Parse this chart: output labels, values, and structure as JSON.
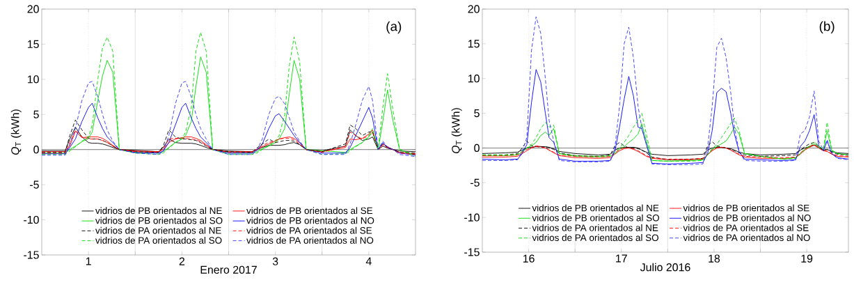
{
  "chart_data": [
    {
      "type": "line",
      "xlabel": "Enero 2017",
      "ylabel": "*Q*$_{T}$ (kWh)",
      "annotations": [
        "(a)"
      ],
      "x": [
        0.5,
        0.75,
        0.8,
        0.86,
        0.93,
        1,
        1.04,
        1.1,
        1.15,
        1.2,
        1.26,
        1.33,
        1.5,
        1.75,
        1.8,
        1.86,
        1.93,
        2,
        2.04,
        2.1,
        2.15,
        2.2,
        2.26,
        2.33,
        2.5,
        2.75,
        2.8,
        2.86,
        2.93,
        3,
        3.04,
        3.1,
        3.15,
        3.2,
        3.26,
        3.33,
        3.5,
        3.75,
        3.8,
        3.86,
        3.93,
        4,
        4.04,
        4.1,
        4.15,
        4.2,
        4.26,
        4.33,
        4.5
      ],
      "xlim": [
        0.5,
        4.5
      ],
      "xticks": [
        1,
        2,
        3,
        4,
        {
          "value": 1.5,
          "label": null
        },
        {
          "value": 2.5,
          "label": null
        },
        {
          "value": 3.5,
          "label": null
        }
      ],
      "ylim": [
        -15,
        20
      ],
      "yticks": [
        -15,
        -10,
        -5,
        0,
        5,
        10,
        15,
        20
      ],
      "grid": "x",
      "legend": "bottom",
      "ref_lines": [
        {
          "axis": "y",
          "value": 0,
          "color": "#555555"
        }
      ],
      "series": [
        {
          "name": "vidrios de PB orientados al NE",
          "color": "#000000",
          "line_style": "solid",
          "values": [
            -0.2,
            -0.2,
            1.5,
            3.2,
            1.8,
            1.0,
            0.9,
            0.9,
            0.8,
            0.6,
            0.3,
            0,
            -0.1,
            -0.3,
            0.3,
            1.5,
            1.0,
            0.9,
            0.9,
            0.9,
            0.8,
            0.6,
            0.3,
            0,
            -0.2,
            -0.3,
            0,
            0.3,
            0.6,
            0.6,
            0.6,
            0.7,
            0.9,
            1.0,
            0.7,
            0,
            -0.2,
            0.5,
            2.8,
            2.0,
            1.3,
            1.5,
            1.8,
            0,
            0.5,
            0.2,
            0,
            -0.2,
            -0.3
          ]
        },
        {
          "name": "vidrios de PB orientados al SE",
          "color": "#ff0000",
          "line_style": "solid",
          "values": [
            -0.3,
            -0.3,
            0.5,
            2.6,
            1.7,
            1.8,
            1.8,
            1.8,
            1.6,
            1.2,
            0.6,
            0,
            -0.2,
            -0.3,
            0,
            1.0,
            1.5,
            1.7,
            1.8,
            1.8,
            1.6,
            1.3,
            0.7,
            0,
            -0.3,
            -0.3,
            0,
            0.4,
            0.8,
            1.2,
            1.5,
            1.7,
            1.8,
            1.6,
            1.0,
            0,
            -0.3,
            0.3,
            1.5,
            1.4,
            1.6,
            2.2,
            2.8,
            0,
            0.8,
            0.4,
            0,
            -0.4,
            -0.6
          ]
        },
        {
          "name": "vidrios de PB orientados al SO",
          "color": "#00dd00",
          "line_style": "solid",
          "values": [
            -0.5,
            -0.5,
            0,
            0.5,
            1.1,
            1.6,
            2.5,
            7.0,
            10.5,
            12.7,
            11.0,
            0,
            -0.4,
            -0.5,
            -0.3,
            0.3,
            1.0,
            1.5,
            2.0,
            4.0,
            9.0,
            13.2,
            11.0,
            0,
            -0.5,
            -0.5,
            -0.3,
            0.1,
            0.5,
            1.0,
            1.5,
            3.0,
            8.0,
            12.7,
            10.0,
            0,
            null,
            -0.4,
            0,
            0.5,
            1.0,
            1.8,
            2.5,
            0,
            4.0,
            8.5,
            4.0,
            0,
            -0.8
          ]
        },
        {
          "name": "vidrios de PB orientados al NO",
          "color": "#0000ff",
          "line_style": "solid",
          "values": [
            -0.6,
            -0.6,
            0.3,
            1.5,
            4.0,
            6.0,
            6.6,
            4.5,
            3.0,
            1.8,
            1.0,
            0,
            -0.4,
            -0.5,
            -0.2,
            1.0,
            3.5,
            6.0,
            6.6,
            4.5,
            3.0,
            1.8,
            1.0,
            0,
            -0.5,
            -0.5,
            -0.1,
            0.8,
            3.0,
            4.8,
            5.1,
            4.0,
            3.0,
            2.0,
            1.0,
            0,
            -0.5,
            -0.5,
            0.3,
            2.0,
            4.0,
            6.0,
            4.5,
            0,
            1.0,
            0.3,
            0,
            -0.5,
            -0.8
          ]
        },
        {
          "name": "vidrios de PA orientados al NE",
          "color": "#000000",
          "line_style": "dashed",
          "values": [
            -0.4,
            -0.4,
            2.0,
            4.2,
            2.8,
            1.6,
            1.5,
            1.5,
            1.3,
            1.0,
            0.5,
            0,
            -0.3,
            -0.4,
            0.5,
            2.8,
            1.8,
            1.5,
            1.5,
            1.4,
            1.3,
            1.0,
            0.5,
            0,
            -0.3,
            -0.4,
            0.2,
            0.8,
            1.5,
            1.0,
            1.1,
            1.3,
            1.3,
            1.2,
            0.7,
            0,
            -0.3,
            0.8,
            3.5,
            3.0,
            2.0,
            2.5,
            2.5,
            0,
            0.8,
            0.3,
            0,
            -0.4,
            -0.5
          ]
        },
        {
          "name": "vidrios de PA orientados al SE",
          "color": "#ff0000",
          "line_style": "dashed",
          "values": [
            -0.5,
            -0.5,
            1.0,
            2.8,
            1.8,
            1.5,
            1.5,
            1.5,
            1.3,
            1.0,
            0.5,
            0,
            -0.3,
            -0.4,
            0.1,
            1.5,
            1.6,
            1.6,
            1.6,
            1.5,
            1.4,
            1.1,
            0.6,
            0,
            -0.4,
            -0.4,
            0,
            0.6,
            1.0,
            1.3,
            1.5,
            1.6,
            1.6,
            1.4,
            0.8,
            0,
            -0.4,
            0.5,
            2.5,
            2.0,
            1.5,
            2.0,
            2.5,
            0,
            0.6,
            0.3,
            0,
            -0.5,
            -0.7
          ]
        },
        {
          "name": "vidrios de PA orientados al SO",
          "color": "#00dd00",
          "line_style": "dashed",
          "values": [
            -0.7,
            -0.7,
            -0.2,
            0.4,
            1.2,
            1.8,
            3.5,
            10.0,
            14.5,
            16.0,
            14.0,
            0,
            -0.5,
            -0.7,
            -0.5,
            0.2,
            1.0,
            1.6,
            2.5,
            6.0,
            14.0,
            16.7,
            14.0,
            0,
            -0.7,
            -0.7,
            -0.5,
            0,
            0.6,
            1.2,
            2.0,
            5.0,
            12.0,
            16.0,
            12.5,
            0,
            -0.7,
            -0.6,
            -0.2,
            0.4,
            1.0,
            2.0,
            3.0,
            0,
            6.0,
            10.8,
            5.5,
            0,
            -1.0
          ]
        },
        {
          "name": "vidrios de PA orientados al NO",
          "color": "#3333ff",
          "line_style": "dashed",
          "values": [
            -0.8,
            -0.8,
            0.8,
            3.0,
            7.0,
            9.5,
            9.7,
            7.5,
            5.0,
            2.8,
            1.2,
            0,
            -0.5,
            -0.7,
            -0.3,
            2.0,
            6.5,
            9.5,
            9.7,
            7.5,
            5.0,
            3.0,
            1.5,
            0,
            -0.7,
            -0.7,
            -0.2,
            1.5,
            5.0,
            7.3,
            7.6,
            6.5,
            4.5,
            2.5,
            1.2,
            0,
            -0.7,
            -0.7,
            0.8,
            3.5,
            7.0,
            9.0,
            7.0,
            0,
            1.2,
            0.4,
            0,
            -0.7,
            -1.0
          ]
        }
      ]
    },
    {
      "type": "line",
      "xlabel": "Julio 2016",
      "ylabel": "*Q*$_{T}$ (kWh)",
      "annotations": [
        "(b)"
      ],
      "x": [
        15.5,
        15.75,
        15.88,
        15.93,
        15.98,
        16.03,
        16.08,
        16.13,
        16.18,
        16.22,
        16.27,
        16.33,
        16.5,
        16.75,
        16.88,
        16.93,
        16.98,
        17.03,
        17.08,
        17.13,
        17.18,
        17.22,
        17.27,
        17.33,
        17.5,
        17.75,
        17.88,
        17.93,
        17.98,
        18.03,
        18.08,
        18.13,
        18.18,
        18.22,
        18.27,
        18.33,
        18.5,
        18.75,
        18.88,
        18.93,
        18.98,
        19.03,
        19.08,
        19.13,
        19.18,
        19.22,
        19.27,
        19.33,
        19.45
      ],
      "xlim": [
        15.5,
        19.45
      ],
      "xticks": [
        16,
        17,
        18,
        19,
        {
          "value": 16.5,
          "label": null
        },
        {
          "value": 17.5,
          "label": null
        },
        {
          "value": 18.5,
          "label": null
        }
      ],
      "ylim": [
        -15,
        20
      ],
      "yticks": [
        -15,
        -10,
        -5,
        0,
        5,
        10,
        15,
        20
      ],
      "grid": "x",
      "legend": "bottom",
      "ref_lines": [
        {
          "axis": "y",
          "value": 0,
          "color": "#555555"
        }
      ],
      "series": [
        {
          "name": "vidrios de PB orientados al NE",
          "color": "#000000",
          "line_style": "solid",
          "values": [
            -0.8,
            -0.7,
            -0.6,
            -0.3,
            0,
            0.1,
            0.2,
            0.2,
            0.2,
            0.1,
            -0.1,
            -0.5,
            -0.8,
            -1.0,
            -0.9,
            -0.3,
            0,
            0.1,
            0.1,
            0.1,
            0,
            -0.3,
            -0.6,
            -0.9,
            -1.1,
            -1.0,
            -0.9,
            -0.3,
            0,
            0.1,
            0.1,
            0,
            -0.1,
            -0.3,
            -0.6,
            -0.8,
            -1.0,
            -0.9,
            -0.8,
            -0.3,
            0,
            0.2,
            0.4,
            0.1,
            -0.3,
            -0.2,
            -0.5,
            -0.7,
            -0.8
          ]
        },
        {
          "name": "vidrios de PB orientados al SE",
          "color": "#ff0000",
          "line_style": "solid",
          "values": [
            -1.3,
            -1.3,
            -1.2,
            -0.8,
            -0.4,
            0,
            0.3,
            0.2,
            0,
            -0.3,
            -0.7,
            -1.1,
            -1.4,
            -1.5,
            -1.4,
            -0.9,
            -0.4,
            -0.1,
            0,
            -0.2,
            -0.5,
            -0.8,
            -1.2,
            -1.5,
            -1.7,
            -1.7,
            -1.6,
            -1.0,
            -0.4,
            0,
            0.1,
            0,
            -0.3,
            -0.6,
            -1.0,
            -1.3,
            -1.5,
            -1.5,
            -1.4,
            -0.9,
            -0.3,
            0.1,
            0.4,
            0,
            -0.4,
            -0.5,
            -0.9,
            -1.2,
            -1.3
          ]
        },
        {
          "name": "vidrios de PB orientados al SO",
          "color": "#00dd00",
          "line_style": "solid",
          "values": [
            -1.1,
            -1.1,
            -1.0,
            -0.6,
            0,
            0.3,
            0.8,
            1.8,
            2.3,
            1.8,
            2.8,
            -0.8,
            -1.2,
            -1.3,
            -1.2,
            -0.8,
            -0.2,
            0.2,
            0.8,
            1.3,
            2.0,
            3.5,
            1.0,
            -1.8,
            -1.9,
            -1.8,
            -1.7,
            -1.0,
            -0.2,
            0.2,
            0.6,
            1.0,
            2.0,
            3.0,
            2.0,
            -0.8,
            -1.2,
            -1.6,
            -1.4,
            -0.8,
            -0.2,
            0.2,
            0.6,
            0.1,
            -0.3,
            2.5,
            -0.4,
            -0.8,
            -1.0
          ]
        },
        {
          "name": "vidrios de PB orientados al NO",
          "color": "#0000ff",
          "line_style": "solid",
          "values": [
            -1.6,
            -1.7,
            -1.6,
            -0.8,
            0.5,
            6.5,
            11.3,
            9.5,
            5.0,
            1.5,
            0.8,
            -1.6,
            -1.9,
            -1.9,
            -1.8,
            -0.5,
            3.0,
            7.0,
            10.3,
            7.5,
            3.0,
            2.8,
            0.5,
            -2.2,
            -2.3,
            -2.2,
            -2.1,
            -0.8,
            2.5,
            8.0,
            8.6,
            8.1,
            5.0,
            2.0,
            -0.5,
            -1.6,
            -1.7,
            -1.8,
            -1.7,
            0.2,
            1.0,
            2.5,
            4.8,
            0.3,
            -0.4,
            1.0,
            -0.8,
            -1.4,
            -1.6
          ]
        },
        {
          "name": "vidrios de PA orientados al NE",
          "color": "#000000",
          "line_style": "dashed",
          "values": [
            -1.0,
            -1.0,
            -0.8,
            0,
            1.0,
            0.3,
            0.2,
            0.2,
            0.1,
            0,
            -0.2,
            -0.7,
            -1.1,
            -1.2,
            -1.0,
            0.3,
            0.8,
            0.3,
            0,
            0,
            -0.1,
            -0.3,
            -0.7,
            -1.3,
            -1.7,
            -1.6,
            -1.5,
            0.3,
            0.9,
            0.3,
            0.1,
            0,
            -0.2,
            -0.4,
            -0.7,
            -1.0,
            -1.2,
            -1.1,
            -1.0,
            -0.3,
            0.2,
            0.6,
            0.8,
            0.2,
            -0.3,
            -0.2,
            -0.6,
            -0.9,
            -1.0
          ]
        },
        {
          "name": "vidrios de PA orientados al SE",
          "color": "#ff0000",
          "line_style": "dashed",
          "values": [
            -1.1,
            -1.1,
            -1.0,
            -0.6,
            -0.2,
            0,
            0.2,
            0.1,
            0,
            -0.3,
            -0.6,
            -1.0,
            -1.2,
            -1.3,
            -1.2,
            -0.7,
            -0.2,
            0,
            0,
            -0.1,
            -0.4,
            -0.7,
            -1.1,
            -1.4,
            -1.6,
            -1.6,
            -1.5,
            -0.9,
            -0.3,
            0,
            0.1,
            0,
            -0.3,
            -0.6,
            -0.9,
            -1.2,
            -1.3,
            -1.4,
            -1.3,
            -0.7,
            -0.2,
            0.2,
            0.5,
            0,
            -0.4,
            -0.4,
            -0.8,
            -1.1,
            -1.2
          ]
        },
        {
          "name": "vidrios de PA orientados al SO",
          "color": "#00dd00",
          "line_style": "dashed",
          "values": [
            -1.0,
            -1.0,
            -0.9,
            -0.5,
            0,
            0.5,
            1.5,
            2.8,
            3.7,
            3.0,
            3.3,
            -0.8,
            -1.1,
            -1.2,
            -1.1,
            -0.6,
            0,
            0.8,
            1.8,
            3.0,
            4.0,
            5.0,
            2.0,
            -1.8,
            -1.9,
            -1.9,
            -1.8,
            -1.0,
            -0.1,
            0.5,
            1.5,
            2.5,
            3.5,
            4.3,
            2.5,
            -0.8,
            -1.2,
            -1.6,
            -1.5,
            -0.8,
            -0.2,
            0.3,
            0.9,
            0.3,
            -0.2,
            3.7,
            -0.3,
            -0.8,
            -1.0
          ]
        },
        {
          "name": "vidrios de PA orientados al NO",
          "color": "#3333ff",
          "line_style": "dashed",
          "values": [
            -1.8,
            -1.8,
            -1.7,
            -0.5,
            1.5,
            14.0,
            18.9,
            16.5,
            10.0,
            4.0,
            1.0,
            -1.8,
            -2.0,
            -2.0,
            -1.9,
            0,
            6.0,
            15.0,
            17.4,
            13.0,
            6.0,
            3.0,
            0.5,
            -2.3,
            -2.4,
            -2.4,
            -2.3,
            0,
            6.0,
            14.5,
            15.8,
            13.0,
            8.0,
            3.0,
            -0.5,
            -1.8,
            -1.9,
            -1.9,
            -1.8,
            2.0,
            2.5,
            4.5,
            8.2,
            1.0,
            -0.3,
            1.2,
            -0.8,
            -1.5,
            -1.7
          ]
        }
      ]
    }
  ]
}
